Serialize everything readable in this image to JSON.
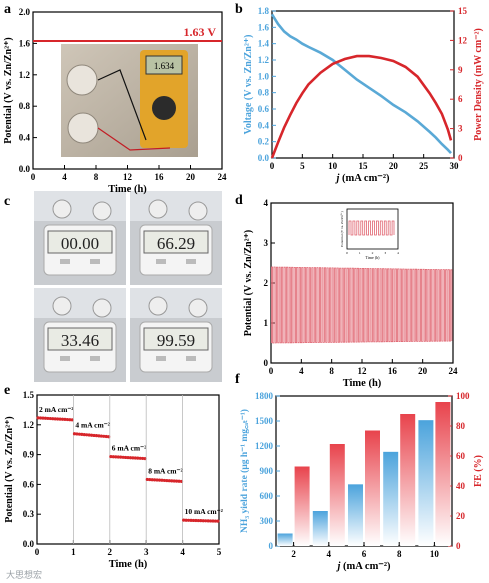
{
  "panels": {
    "a": {
      "label": "a"
    },
    "b": {
      "label": "b"
    },
    "c": {
      "label": "c"
    },
    "d": {
      "label": "d"
    },
    "e": {
      "label": "e"
    },
    "f": {
      "label": "f"
    }
  },
  "chart_data": [
    {
      "id": "a",
      "type": "line",
      "xlabel": "Time (h)",
      "ylabel": "Potential (V vs. Zn/Zn²⁺)",
      "xlim": [
        0,
        24
      ],
      "ylim": [
        0.0,
        2.0
      ],
      "xticks": [
        "0",
        "4",
        "8",
        "12",
        "16",
        "20",
        "24"
      ],
      "yticks": [
        "0.0",
        "0.4",
        "0.8",
        "1.2",
        "1.6",
        "2.0"
      ],
      "series": [
        {
          "color": "#d7262b",
          "x": [
            0,
            24
          ],
          "y": [
            1.63,
            1.63
          ]
        }
      ],
      "annotation": "1.63 V",
      "inset_digits": "1.634",
      "legend": "none"
    },
    {
      "id": "b",
      "type": "line",
      "xlabel": "j (mA cm⁻²)",
      "ylabel_left": "Voltage (V vs. Zn/Zn²⁺)",
      "ylabel_right": "Power Density (mW cm⁻²)",
      "xlim": [
        0,
        30
      ],
      "ylim_left": [
        0.0,
        1.8
      ],
      "ylim_right": [
        0,
        15
      ],
      "xticks": [
        "0",
        "5",
        "10",
        "15",
        "20",
        "25",
        "30"
      ],
      "yticks_left": [
        "0.0",
        "0.2",
        "0.4",
        "0.6",
        "0.8",
        "1.0",
        "1.2",
        "1.4",
        "1.6",
        "1.8"
      ],
      "yticks_right": [
        "0",
        "3",
        "6",
        "9",
        "12",
        "15"
      ],
      "series": [
        {
          "axis": "left",
          "color": "#5aa9d6",
          "x": [
            0,
            0.5,
            1,
            2,
            3,
            4,
            5,
            6,
            8,
            10,
            12,
            14,
            16,
            18,
            20,
            22,
            24,
            26,
            27,
            28,
            29,
            29.5
          ],
          "y": [
            1.76,
            1.7,
            1.64,
            1.55,
            1.49,
            1.45,
            1.4,
            1.36,
            1.29,
            1.2,
            1.08,
            0.96,
            0.86,
            0.76,
            0.65,
            0.56,
            0.45,
            0.32,
            0.25,
            0.17,
            0.1,
            0.06
          ]
        },
        {
          "axis": "right",
          "color": "#d7262b",
          "x": [
            0,
            1,
            2,
            3,
            4,
            5,
            6,
            8,
            10,
            12,
            14,
            16,
            18,
            20,
            22,
            24,
            26,
            27,
            28,
            29,
            29.5
          ],
          "y": [
            0,
            1.6,
            3.1,
            4.4,
            5.6,
            6.6,
            7.5,
            8.7,
            9.6,
            10.1,
            10.4,
            10.4,
            10.2,
            9.9,
            9.3,
            8.3,
            6.6,
            5.6,
            4.5,
            2.9,
            1.8
          ]
        }
      ],
      "legend": "none"
    },
    {
      "id": "c",
      "type": "table",
      "readings": [
        "00.00",
        "66.29",
        "33.46",
        "99.59"
      ]
    },
    {
      "id": "d",
      "type": "line",
      "xlabel": "Time (h)",
      "ylabel": "Potential (V vs. Zn/Zn²⁺)",
      "xlim": [
        0,
        24
      ],
      "ylim": [
        0,
        4
      ],
      "xticks": [
        "0",
        "4",
        "8",
        "12",
        "16",
        "20",
        "24"
      ],
      "yticks": [
        "0",
        "1",
        "2",
        "3",
        "4"
      ],
      "cycle_period_h": 0.333,
      "charge_plateau_V": 2.4,
      "discharge_plateau_V": 0.5,
      "end_charge_V": 2.33,
      "end_discharge_V": 0.55,
      "series": [
        {
          "color": "#e06470"
        }
      ],
      "inset": {
        "xlabel": "Time (h)",
        "ylabel": "Potential (V vs. Zn/Zn²⁺)",
        "xticks": [
          "0",
          "1",
          "2",
          "3",
          "4"
        ]
      },
      "legend": "none"
    },
    {
      "id": "e",
      "type": "scatter",
      "xlabel": "Time (h)",
      "ylabel": "Potential (V vs. Zn/Zn²⁺)",
      "xlim": [
        0,
        5
      ],
      "ylim": [
        0.0,
        1.5
      ],
      "xticks": [
        "0",
        "1",
        "2",
        "3",
        "4",
        "5"
      ],
      "yticks": [
        "0.0",
        "0.3",
        "0.6",
        "0.9",
        "1.2",
        "1.5"
      ],
      "segments": [
        {
          "label": "2 mA cm⁻²",
          "x0": 0,
          "x1": 1,
          "y0": 1.27,
          "y1": 1.25
        },
        {
          "label": "4 mA cm⁻²",
          "x0": 1,
          "x1": 2,
          "y0": 1.11,
          "y1": 1.08
        },
        {
          "label": "6 mA cm⁻²",
          "x0": 2,
          "x1": 3,
          "y0": 0.88,
          "y1": 0.86
        },
        {
          "label": "8 mA cm⁻²",
          "x0": 3,
          "x1": 4,
          "y0": 0.65,
          "y1": 0.63
        },
        {
          "label": "10 mA cm⁻²",
          "x0": 4,
          "x1": 5,
          "y0": 0.24,
          "y1": 0.23
        }
      ],
      "color": "#d7262b",
      "legend": "none"
    },
    {
      "id": "f",
      "type": "bar",
      "xlabel": "j (mA cm⁻²)",
      "ylabel_left": "NH₃ yield rate (μg h⁻¹ mg꜀ₐₜ⁻¹)",
      "ylabel_right": "FE (%)",
      "categories": [
        "2",
        "4",
        "6",
        "8",
        "10"
      ],
      "ylim_left": [
        0,
        1800
      ],
      "ylim_right": [
        0,
        100
      ],
      "yticks_left": [
        "0",
        "300",
        "600",
        "900",
        "1200",
        "1500",
        "1800"
      ],
      "yticks_right": [
        "0",
        "20",
        "40",
        "60",
        "80",
        "100"
      ],
      "series": [
        {
          "axis": "left",
          "color": "#4ba3dc",
          "values": [
            150,
            420,
            740,
            1130,
            1510
          ]
        },
        {
          "axis": "right",
          "color": "#e8434c",
          "values": [
            53,
            68,
            77,
            88,
            96
          ]
        }
      ],
      "legend": "none"
    }
  ],
  "watermark": "大思想宏"
}
